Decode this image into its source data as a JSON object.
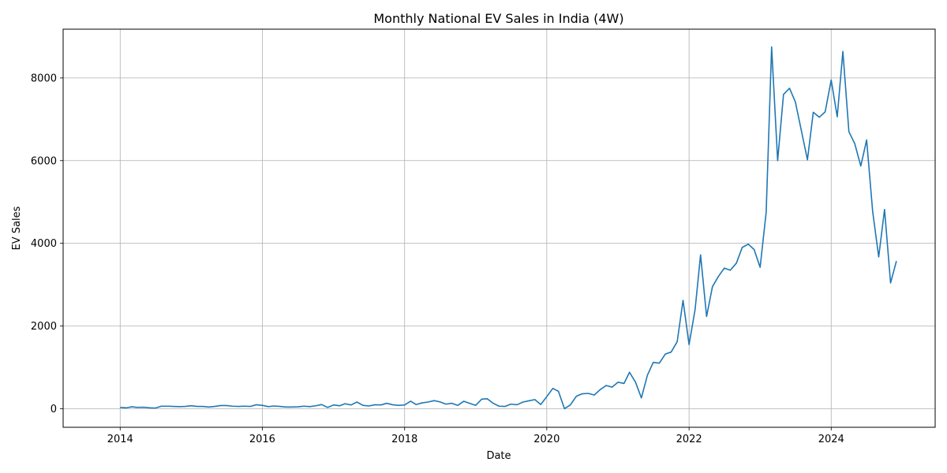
{
  "chart_data": {
    "type": "line",
    "title": "Monthly National EV Sales in India (4W)",
    "xlabel": "Date",
    "ylabel": "EV Sales",
    "xlim": [
      "2013-03-14",
      "2025-06-18"
    ],
    "ylim": [
      -450,
      9180
    ],
    "x_ticks": [
      {
        "date": "2014-01-01",
        "label": "2014"
      },
      {
        "date": "2016-01-01",
        "label": "2016"
      },
      {
        "date": "2018-01-01",
        "label": "2018"
      },
      {
        "date": "2020-01-01",
        "label": "2020"
      },
      {
        "date": "2022-01-01",
        "label": "2022"
      },
      {
        "date": "2024-01-01",
        "label": "2024"
      }
    ],
    "y_ticks": [
      {
        "value": 0,
        "label": "0"
      },
      {
        "value": 2000,
        "label": "2000"
      },
      {
        "value": 4000,
        "label": "4000"
      },
      {
        "value": 6000,
        "label": "6000"
      },
      {
        "value": 8000,
        "label": "8000"
      }
    ],
    "grid": true,
    "line_color": "#1f77b4",
    "series": [
      {
        "x": [
          "2014-01",
          "2014-02",
          "2014-03",
          "2014-04",
          "2014-05",
          "2014-06",
          "2014-07",
          "2014-08",
          "2014-09",
          "2014-10",
          "2014-11",
          "2014-12",
          "2015-01",
          "2015-02",
          "2015-03",
          "2015-04",
          "2015-05",
          "2015-06",
          "2015-07",
          "2015-08",
          "2015-09",
          "2015-10",
          "2015-11",
          "2015-12",
          "2016-01",
          "2016-02",
          "2016-03",
          "2016-04",
          "2016-05",
          "2016-06",
          "2016-07",
          "2016-08",
          "2016-09",
          "2016-10",
          "2016-11",
          "2016-12",
          "2017-01",
          "2017-02",
          "2017-03",
          "2017-04",
          "2017-05",
          "2017-06",
          "2017-07",
          "2017-08",
          "2017-09",
          "2017-10",
          "2017-11",
          "2017-12",
          "2018-01",
          "2018-02",
          "2018-03",
          "2018-04",
          "2018-05",
          "2018-06",
          "2018-07",
          "2018-08",
          "2018-09",
          "2018-10",
          "2018-11",
          "2018-12",
          "2019-01",
          "2019-02",
          "2019-03",
          "2019-04",
          "2019-05",
          "2019-06",
          "2019-07",
          "2019-08",
          "2019-09",
          "2019-10",
          "2019-11",
          "2019-12",
          "2020-01",
          "2020-02",
          "2020-03",
          "2020-04",
          "2020-05",
          "2020-06",
          "2020-07",
          "2020-08",
          "2020-09",
          "2020-10",
          "2020-11",
          "2020-12",
          "2021-01",
          "2021-02",
          "2021-03",
          "2021-04",
          "2021-05",
          "2021-06",
          "2021-07",
          "2021-08",
          "2021-09",
          "2021-10",
          "2021-11",
          "2021-12",
          "2022-01",
          "2022-02",
          "2022-03",
          "2022-04",
          "2022-05",
          "2022-06",
          "2022-07",
          "2022-08",
          "2022-09",
          "2022-10",
          "2022-11",
          "2022-12",
          "2023-01",
          "2023-02",
          "2023-03",
          "2023-04",
          "2023-05",
          "2023-06",
          "2023-07",
          "2023-08",
          "2023-09",
          "2023-10",
          "2023-11",
          "2023-12",
          "2024-01",
          "2024-02",
          "2024-03",
          "2024-04",
          "2024-05",
          "2024-06",
          "2024-07",
          "2024-08",
          "2024-09",
          "2024-10",
          "2024-11",
          "2024-12"
        ],
        "y": [
          30,
          20,
          45,
          30,
          35,
          20,
          15,
          60,
          60,
          55,
          50,
          55,
          70,
          55,
          55,
          40,
          55,
          75,
          75,
          60,
          55,
          60,
          55,
          95,
          80,
          50,
          65,
          55,
          40,
          40,
          45,
          60,
          50,
          70,
          100,
          30,
          90,
          70,
          120,
          90,
          160,
          80,
          65,
          95,
          90,
          130,
          95,
          80,
          90,
          180,
          100,
          140,
          160,
          195,
          165,
          110,
          130,
          80,
          180,
          130,
          80,
          230,
          240,
          130,
          60,
          55,
          110,
          95,
          160,
          190,
          220,
          100,
          290,
          490,
          420,
          0,
          90,
          300,
          360,
          370,
          330,
          460,
          560,
          520,
          640,
          610,
          880,
          640,
          260,
          810,
          1120,
          1100,
          1320,
          1370,
          1620,
          2620,
          1550,
          2400,
          3720,
          2230,
          2950,
          3200,
          3400,
          3350,
          3520,
          3900,
          3980,
          3850,
          3420,
          4750,
          8750,
          6000,
          7600,
          7750,
          7420,
          6720,
          6020,
          7170,
          7050,
          7180,
          7950,
          7060,
          8640,
          6700,
          6410,
          5870,
          6500,
          4770,
          3670,
          4820,
          3040,
          3570
        ]
      }
    ]
  }
}
